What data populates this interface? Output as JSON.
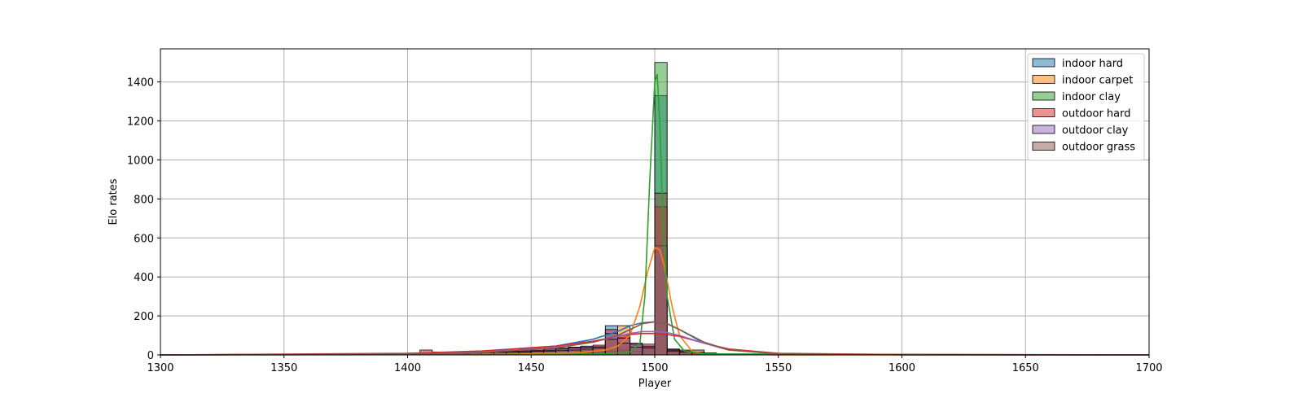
{
  "chart_data": {
    "type": "histogram",
    "title": "",
    "xlabel": "Player",
    "ylabel": "Elo rates",
    "xlim": [
      1300,
      1700
    ],
    "ylim": [
      0,
      1570
    ],
    "xticks": [
      1300,
      1350,
      1400,
      1450,
      1500,
      1550,
      1600,
      1650,
      1700
    ],
    "yticks": [
      0,
      200,
      400,
      600,
      800,
      1000,
      1200,
      1400
    ],
    "grid": true,
    "legend_position": "top-right",
    "bin_width": 5,
    "bins": [
      1405,
      1410,
      1415,
      1420,
      1425,
      1430,
      1435,
      1440,
      1445,
      1450,
      1455,
      1460,
      1465,
      1470,
      1475,
      1480,
      1485,
      1490,
      1495,
      1500,
      1505,
      1510,
      1515,
      1520,
      1525,
      1530
    ],
    "series": [
      {
        "name": "indoor hard",
        "color": "#1f77b4",
        "values": [
          5,
          12,
          8,
          10,
          12,
          15,
          18,
          22,
          25,
          22,
          25,
          30,
          35,
          40,
          35,
          150,
          90,
          50,
          45,
          1330,
          30,
          15,
          12,
          8,
          5,
          3
        ],
        "kde_x": [
          1300,
          1400,
          1430,
          1460,
          1475,
          1485,
          1490,
          1495,
          1500,
          1505,
          1510,
          1520,
          1530,
          1550,
          1600,
          1700
        ],
        "kde_y": [
          0,
          5,
          18,
          45,
          80,
          120,
          150,
          165,
          170,
          160,
          130,
          60,
          25,
          5,
          1,
          0
        ]
      },
      {
        "name": "indoor carpet",
        "color": "#ff7f0e",
        "values": [
          2,
          5,
          5,
          6,
          8,
          10,
          12,
          15,
          15,
          18,
          18,
          22,
          25,
          25,
          40,
          80,
          150,
          0,
          0,
          560,
          30,
          25,
          10,
          5,
          3,
          2
        ],
        "kde_x": [
          1300,
          1440,
          1460,
          1470,
          1480,
          1485,
          1490,
          1494,
          1497,
          1500,
          1502,
          1504,
          1507,
          1510,
          1515,
          1520,
          1550,
          1700
        ],
        "kde_y": [
          0,
          3,
          8,
          12,
          25,
          45,
          100,
          250,
          420,
          550,
          540,
          450,
          250,
          100,
          20,
          5,
          0,
          0
        ]
      },
      {
        "name": "indoor clay",
        "color": "#2ca02c",
        "values": [
          1,
          2,
          2,
          3,
          3,
          4,
          5,
          5,
          5,
          8,
          10,
          10,
          12,
          12,
          15,
          20,
          25,
          20,
          40,
          1500,
          15,
          8,
          5,
          3,
          2,
          1
        ],
        "kde_x": [
          1300,
          1450,
          1480,
          1490,
          1494,
          1496,
          1498,
          1500,
          1501,
          1502,
          1503,
          1505,
          1508,
          1512,
          1520,
          1700
        ],
        "kde_y": [
          0,
          2,
          5,
          15,
          60,
          300,
          900,
          1400,
          1440,
          1200,
          800,
          300,
          80,
          20,
          5,
          0
        ]
      },
      {
        "name": "outdoor hard",
        "color": "#d62728",
        "values": [
          25,
          15,
          12,
          14,
          16,
          18,
          20,
          25,
          28,
          30,
          32,
          35,
          40,
          45,
          50,
          130,
          100,
          60,
          55,
          760,
          25,
          20,
          15,
          10,
          6,
          4
        ],
        "kde_x": [
          1300,
          1400,
          1430,
          1460,
          1475,
          1485,
          1490,
          1495,
          1500,
          1505,
          1510,
          1520,
          1530,
          1550,
          1600,
          1700
        ],
        "kde_y": [
          0,
          8,
          20,
          45,
          70,
          95,
          105,
          110,
          110,
          105,
          95,
          60,
          30,
          8,
          2,
          0
        ]
      },
      {
        "name": "outdoor clay",
        "color": "#9467bd",
        "values": [
          4,
          8,
          8,
          10,
          12,
          14,
          15,
          18,
          20,
          22,
          25,
          30,
          35,
          40,
          42,
          110,
          85,
          55,
          45,
          560,
          25,
          15,
          10,
          6,
          4,
          2
        ],
        "kde_x": [
          1300,
          1400,
          1430,
          1460,
          1475,
          1485,
          1490,
          1495,
          1500,
          1505,
          1510,
          1520,
          1530,
          1550,
          1600,
          1700
        ],
        "kde_y": [
          0,
          5,
          15,
          38,
          65,
          95,
          110,
          120,
          120,
          115,
          100,
          60,
          25,
          6,
          1,
          0
        ]
      },
      {
        "name": "outdoor grass",
        "color": "#8c564b",
        "values": [
          3,
          5,
          6,
          8,
          10,
          12,
          14,
          15,
          15,
          18,
          20,
          22,
          25,
          30,
          35,
          80,
          60,
          40,
          35,
          830,
          20,
          15,
          25,
          6,
          4,
          2
        ],
        "kde_x": [
          1300,
          1400,
          1430,
          1460,
          1475,
          1485,
          1490,
          1495,
          1500,
          1505,
          1510,
          1520,
          1530,
          1550,
          1600,
          1700
        ],
        "kde_y": [
          0,
          4,
          12,
          35,
          65,
          100,
          130,
          160,
          170,
          160,
          130,
          65,
          25,
          6,
          1,
          0
        ]
      }
    ]
  }
}
